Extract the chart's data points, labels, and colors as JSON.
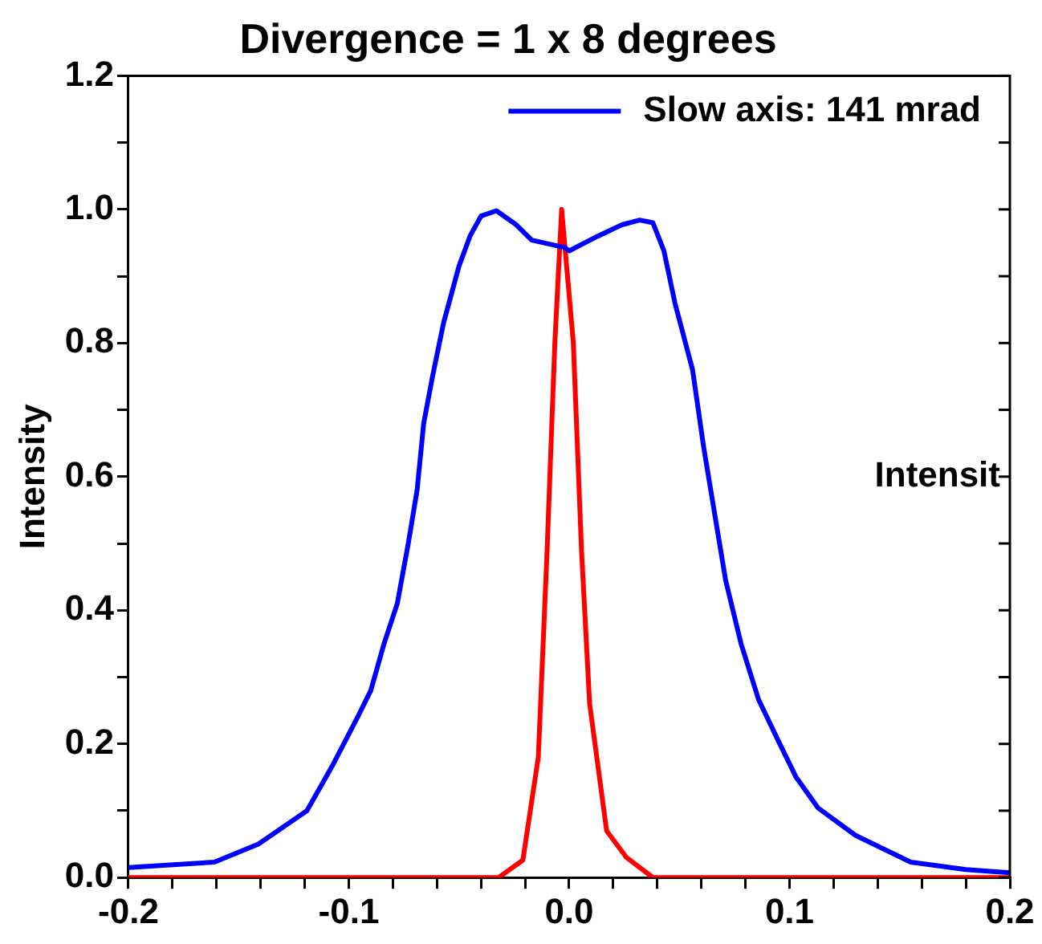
{
  "chart_data": {
    "type": "line",
    "title": "Divergence = 1 x 8 degrees",
    "ylabel": "Intensity",
    "annotations": [
      "Intensit"
    ],
    "xlim": [
      -0.2,
      0.2
    ],
    "ylim": [
      0,
      1.2
    ],
    "xticks": [
      -0.2,
      {
        "value": -0.18,
        "label": null
      },
      {
        "value": -0.16,
        "label": null
      },
      {
        "value": -0.14,
        "label": null
      },
      {
        "value": -0.12,
        "label": null
      },
      -0.1,
      {
        "value": -0.08,
        "label": null
      },
      {
        "value": -0.06,
        "label": null
      },
      {
        "value": -0.04,
        "label": null
      },
      {
        "value": -0.02,
        "label": null
      },
      {
        "value": 0,
        "label": "0.0"
      },
      {
        "value": 0.02,
        "label": null
      },
      {
        "value": 0.04,
        "label": null
      },
      {
        "value": 0.06,
        "label": null
      },
      {
        "value": 0.08,
        "label": null
      },
      0.1,
      {
        "value": 0.12,
        "label": null
      },
      {
        "value": 0.14,
        "label": null
      },
      {
        "value": 0.16,
        "label": null
      },
      {
        "value": 0.18,
        "label": null
      },
      0.2
    ],
    "yticks": [
      {
        "value": 0,
        "label": "0.0"
      },
      {
        "value": 0.1,
        "label": null
      },
      0.2,
      {
        "value": 0.3,
        "label": null
      },
      0.4,
      {
        "value": 0.5,
        "label": null
      },
      0.6,
      {
        "value": 0.7,
        "label": null
      },
      0.8,
      {
        "value": 0.9,
        "label": null
      },
      {
        "value": 1,
        "label": "1.0"
      },
      {
        "value": 1.1,
        "label": null
      },
      1.2
    ],
    "grid": false,
    "legend": "top right",
    "marker": "none",
    "line_style": "solid",
    "series": [
      {
        "name": "Slow axis: 141 mrad",
        "color": "#0000ff",
        "x": [
          -0.2,
          -0.161,
          -0.141,
          -0.119,
          -0.107,
          -0.096,
          -0.09,
          -0.084,
          -0.078,
          -0.073,
          -0.069,
          -0.066,
          -0.062,
          -0.057,
          -0.05,
          -0.045,
          -0.04,
          -0.033,
          -0.024,
          -0.017,
          -0.002,
          0.0,
          0.013,
          0.024,
          0.032,
          0.038,
          0.043,
          0.048,
          0.056,
          0.061,
          0.066,
          0.071,
          0.078,
          0.086,
          0.095,
          0.103,
          0.113,
          0.13,
          0.155,
          0.18,
          0.2
        ],
        "values": [
          0.015,
          0.023,
          0.05,
          0.1,
          0.17,
          0.24,
          0.28,
          0.35,
          0.41,
          0.5,
          0.58,
          0.68,
          0.75,
          0.83,
          0.915,
          0.96,
          0.99,
          0.998,
          0.977,
          0.954,
          0.943,
          0.938,
          0.96,
          0.977,
          0.984,
          0.98,
          0.938,
          0.86,
          0.76,
          0.645,
          0.545,
          0.445,
          0.35,
          0.266,
          0.204,
          0.15,
          0.104,
          0.063,
          0.023,
          0.012,
          0.007
        ]
      },
      {
        "color": "#ff0000",
        "x": [
          -0.2,
          -0.032,
          -0.021,
          -0.014,
          -0.01,
          -0.0065,
          -0.0034,
          0.0019,
          0.0056,
          0.0093,
          0.017,
          0.026,
          0.038,
          0.2
        ],
        "values": [
          0,
          0,
          0.026,
          0.18,
          0.49,
          0.8,
          1.0,
          0.8,
          0.49,
          0.26,
          0.07,
          0.03,
          0,
          0
        ]
      }
    ]
  }
}
